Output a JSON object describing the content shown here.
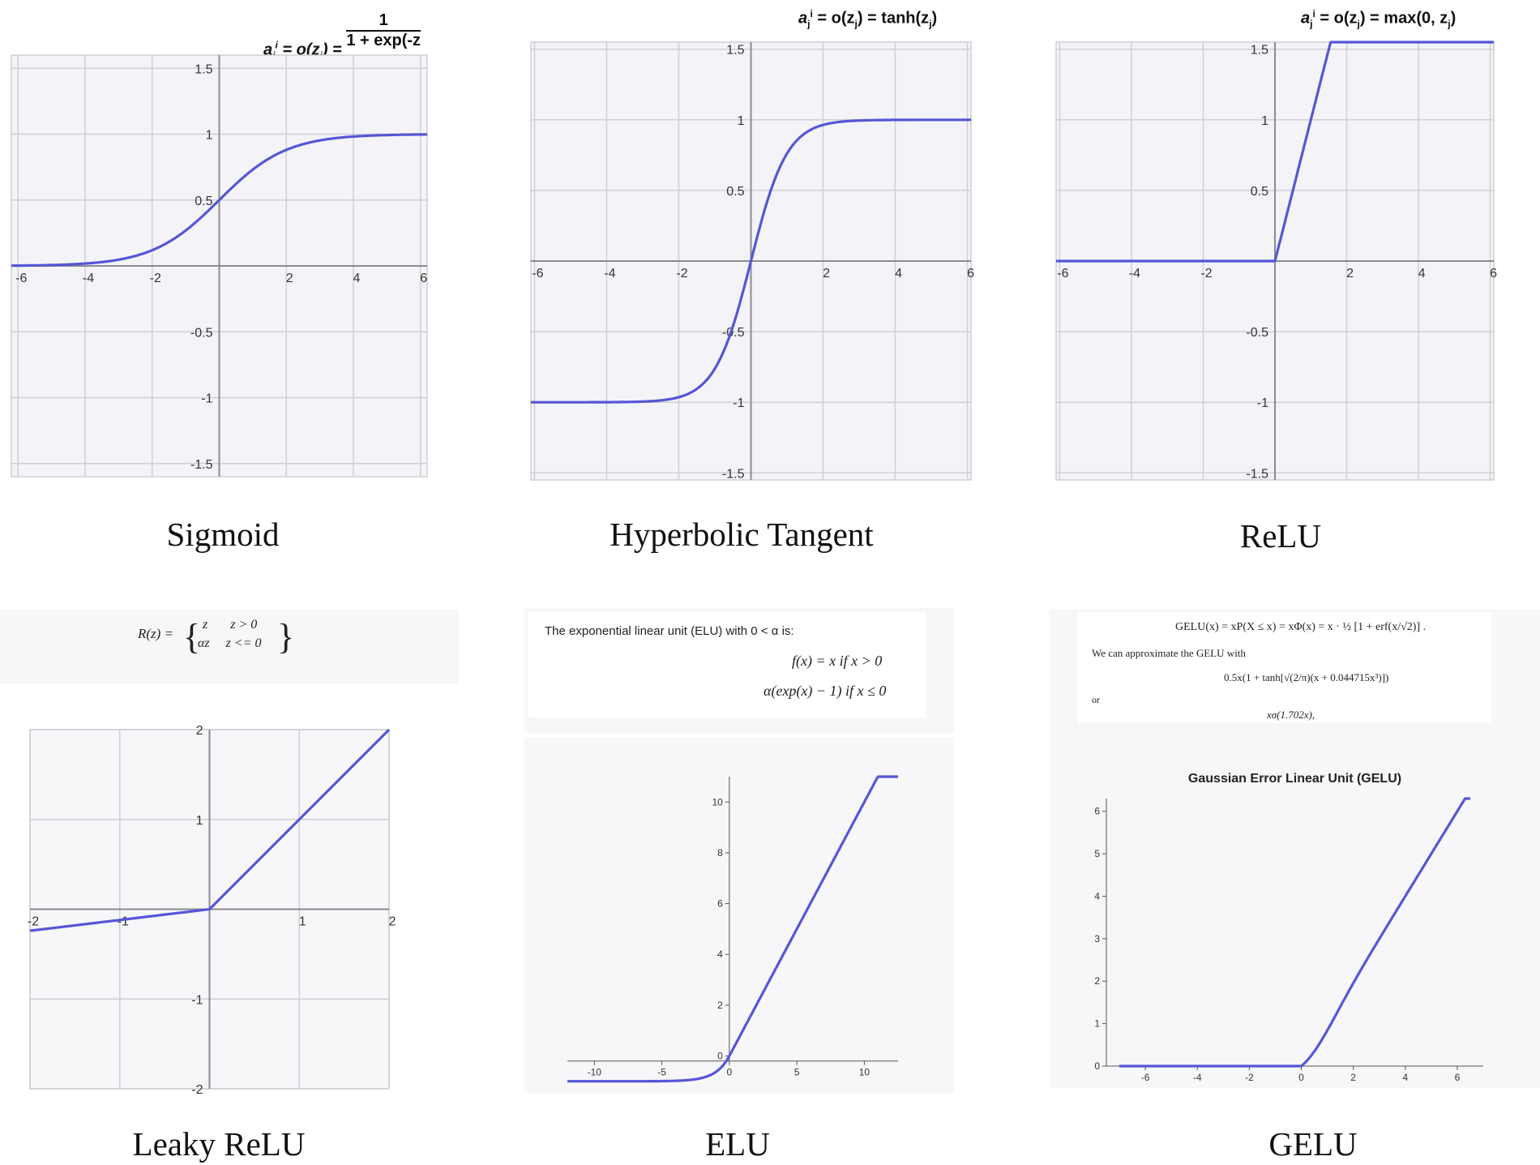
{
  "captions": {
    "sigmoid": "Sigmoid",
    "tanh": "Hyperbolic Tangent",
    "relu": "ReLU",
    "leaky": "Leaky ReLU",
    "elu": "ELU",
    "gelu": "GELU"
  },
  "formulas": {
    "sigmoid_lhs": "a",
    "sigmoid_mid": "= o(z",
    "sigmoid_eq": ") =",
    "sigmoid_num": "1",
    "sigmoid_den": "1 + exp(-z",
    "sigmoid_den_end": ")",
    "tanh_text": "= o(z",
    "tanh_mid": ") = tanh(z",
    "tanh_end": ")",
    "relu_text": "= o(z",
    "relu_mid": ") = max(0, z",
    "relu_end": ")",
    "sup_i": "i",
    "sub_j": "j",
    "leaky_lhs": "R(z) =",
    "leaky_row1": "z       z > 0",
    "leaky_row2": "αz     z <= 0",
    "elu_intro": "The exponential linear unit (ELU) with 0 < α is:",
    "elu_line1": "f(x) = x if x > 0",
    "elu_line2": "α(exp(x) − 1) if x ≤ 0",
    "gelu_line1": "GELU(x) = xP(X ≤ x) = xΦ(x) = x · ½ [1 + erf(x/√2)] .",
    "gelu_line2": "We can approximate the GELU with",
    "gelu_line3": "0.5x(1 + tanh[√(2/π)(x + 0.044715x³)])",
    "gelu_line4": "or",
    "gelu_line5": "xσ(1.702x),"
  },
  "colors": {
    "curve": "#5656d6",
    "grid": "#cfcfd4",
    "axis": "#8a8a90",
    "tick": "#333333"
  },
  "chart_data": [
    {
      "id": "sigmoid",
      "type": "line",
      "function": "sigmoid",
      "xlim": [
        -6.2,
        6.2
      ],
      "ylim": [
        -1.6,
        1.6
      ],
      "xticks": [
        -6,
        -4,
        -2,
        2,
        4,
        6
      ],
      "yticks": [
        1.5,
        1,
        0.5,
        -0.5,
        -1,
        -1.5
      ],
      "xtick_labels": [
        "-6",
        "-4",
        "-2",
        "2",
        "4",
        "6"
      ],
      "ytick_labels": [
        "1.5",
        "1",
        "0.5",
        "-0.5",
        "-1",
        "-1.5"
      ],
      "grid": true
    },
    {
      "id": "tanh",
      "type": "line",
      "function": "tanh",
      "xlim": [
        -6.1,
        6.1
      ],
      "ylim": [
        -1.55,
        1.55
      ],
      "xticks": [
        -6,
        -4,
        -2,
        2,
        4,
        6
      ],
      "yticks": [
        1.5,
        1,
        0.5,
        -0.5,
        -1,
        -1.5
      ],
      "xtick_labels": [
        "-6",
        "-4",
        "-2",
        "2",
        "4",
        "6"
      ],
      "ytick_labels": [
        "1.5",
        "1",
        "0.5",
        "-0.5",
        "-1",
        "-1.5"
      ],
      "grid": true
    },
    {
      "id": "relu",
      "type": "line",
      "function": "relu",
      "xlim": [
        -6.1,
        6.1
      ],
      "ylim": [
        -1.55,
        1.55
      ],
      "xticks": [
        -6,
        -4,
        -2,
        2,
        4,
        6
      ],
      "yticks": [
        1.5,
        1,
        0.5,
        -0.5,
        -1,
        -1.5
      ],
      "xtick_labels": [
        "-6",
        "-4",
        "-2",
        "2",
        "4",
        "6"
      ],
      "ytick_labels": [
        "1.5",
        "1",
        "0.5",
        "-0.5",
        "-1",
        "-1.5"
      ],
      "grid": true
    },
    {
      "id": "leaky",
      "type": "line",
      "function": "leaky_relu",
      "alpha": 0.12,
      "xlim": [
        -2,
        2
      ],
      "ylim": [
        -2,
        2
      ],
      "xticks": [
        -2,
        -1,
        1,
        2
      ],
      "yticks": [
        2,
        1,
        -1,
        -2
      ],
      "xtick_labels": [
        "-2",
        "-1",
        "1",
        "2"
      ],
      "ytick_labels": [
        "2",
        "1",
        "-1",
        "-2"
      ],
      "grid": true
    },
    {
      "id": "elu",
      "type": "line",
      "function": "elu",
      "alpha": 1,
      "xlim": [
        -12,
        12.5
      ],
      "ylim": [
        -1.2,
        11
      ],
      "x_range": [
        -12,
        12.5
      ],
      "xticks": [
        -10,
        -5,
        0,
        5,
        10
      ],
      "yticks": [
        0,
        2,
        4,
        6,
        8,
        10
      ],
      "xtick_labels": [
        "-10",
        "-5",
        "0",
        "5",
        "10"
      ],
      "ytick_labels": [
        "0",
        "2",
        "4",
        "6",
        "8",
        "10"
      ],
      "grid": false
    },
    {
      "id": "gelu",
      "type": "line",
      "function": "gelu",
      "title": "Gaussian Error Linear Unit (GELU)",
      "xlim": [
        -7.5,
        7
      ],
      "ylim": [
        0,
        6.3
      ],
      "x_range": [
        -7,
        6.5
      ],
      "xticks": [
        -6,
        -4,
        -2,
        0,
        2,
        4,
        6
      ],
      "yticks": [
        0,
        1,
        2,
        3,
        4,
        5,
        6
      ],
      "xtick_labels": [
        "-6",
        "-4",
        "-2",
        "0",
        "2",
        "4",
        "6"
      ],
      "ytick_labels": [
        "0",
        "1",
        "2",
        "3",
        "4",
        "5",
        "6"
      ],
      "grid": false
    }
  ]
}
